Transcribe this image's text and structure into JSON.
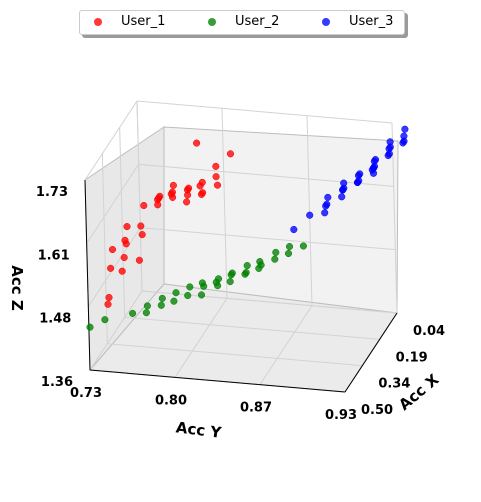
{
  "chart_data": {
    "type": "scatter",
    "projection": "3d",
    "xlabel": "Acc X",
    "ylabel": "Acc Y",
    "zlabel": "Acc Z",
    "x_ticks": [
      "0.04",
      "0.19",
      "0.34",
      "0.50"
    ],
    "y_ticks": [
      "0.73",
      "0.80",
      "0.87",
      "0.93"
    ],
    "z_ticks": [
      "1.36",
      "1.48",
      "1.61",
      "1.73"
    ],
    "xlim": [
      0.04,
      0.5
    ],
    "ylim": [
      0.73,
      0.93
    ],
    "zlim": [
      1.36,
      1.73
    ],
    "legend_position": "top-center",
    "grid": true,
    "series": [
      {
        "name": "User_1",
        "color": "#ff0000",
        "points": [
          [
            0.44,
            0.74,
            1.47
          ],
          [
            0.43,
            0.74,
            1.48
          ],
          [
            0.41,
            0.74,
            1.53
          ],
          [
            0.39,
            0.74,
            1.56
          ],
          [
            0.4,
            0.75,
            1.55
          ],
          [
            0.38,
            0.75,
            1.57
          ],
          [
            0.39,
            0.75,
            1.58
          ],
          [
            0.37,
            0.75,
            1.6
          ],
          [
            0.36,
            0.76,
            1.6
          ],
          [
            0.35,
            0.76,
            1.58
          ],
          [
            0.33,
            0.76,
            1.63
          ],
          [
            0.32,
            0.77,
            1.64
          ],
          [
            0.31,
            0.77,
            1.64
          ],
          [
            0.32,
            0.77,
            1.63
          ],
          [
            0.3,
            0.77,
            1.64
          ],
          [
            0.31,
            0.78,
            1.65
          ],
          [
            0.3,
            0.78,
            1.64
          ],
          [
            0.29,
            0.78,
            1.66
          ],
          [
            0.3,
            0.78,
            1.65
          ],
          [
            0.28,
            0.79,
            1.65
          ],
          [
            0.29,
            0.79,
            1.63
          ],
          [
            0.28,
            0.79,
            1.64
          ],
          [
            0.27,
            0.79,
            1.65
          ],
          [
            0.28,
            0.8,
            1.66
          ],
          [
            0.27,
            0.8,
            1.64
          ],
          [
            0.26,
            0.8,
            1.66
          ],
          [
            0.26,
            0.8,
            1.64
          ],
          [
            0.25,
            0.81,
            1.67
          ],
          [
            0.24,
            0.81,
            1.65
          ],
          [
            0.25,
            0.81,
            1.69
          ],
          [
            0.23,
            0.82,
            1.71
          ],
          [
            0.3,
            0.8,
            1.75
          ],
          [
            0.38,
            0.76,
            1.54
          ],
          [
            0.42,
            0.75,
            1.53
          ]
        ]
      },
      {
        "name": "User_2",
        "color": "#008000",
        "points": [
          [
            0.49,
            0.73,
            1.44
          ],
          [
            0.47,
            0.74,
            1.45
          ],
          [
            0.45,
            0.76,
            1.46
          ],
          [
            0.43,
            0.77,
            1.47
          ],
          [
            0.44,
            0.77,
            1.46
          ],
          [
            0.42,
            0.78,
            1.47
          ],
          [
            0.41,
            0.78,
            1.48
          ],
          [
            0.42,
            0.79,
            1.48
          ],
          [
            0.4,
            0.79,
            1.49
          ],
          [
            0.41,
            0.8,
            1.49
          ],
          [
            0.39,
            0.8,
            1.5
          ],
          [
            0.4,
            0.81,
            1.49
          ],
          [
            0.38,
            0.81,
            1.5
          ],
          [
            0.39,
            0.81,
            1.51
          ],
          [
            0.37,
            0.82,
            1.5
          ],
          [
            0.38,
            0.82,
            1.51
          ],
          [
            0.36,
            0.82,
            1.51
          ],
          [
            0.37,
            0.83,
            1.51
          ],
          [
            0.35,
            0.83,
            1.52
          ],
          [
            0.36,
            0.83,
            1.52
          ],
          [
            0.34,
            0.84,
            1.52
          ],
          [
            0.35,
            0.84,
            1.52
          ],
          [
            0.33,
            0.84,
            1.53
          ],
          [
            0.34,
            0.85,
            1.53
          ],
          [
            0.32,
            0.85,
            1.53
          ],
          [
            0.33,
            0.85,
            1.54
          ],
          [
            0.31,
            0.86,
            1.54
          ],
          [
            0.3,
            0.86,
            1.55
          ],
          [
            0.3,
            0.87,
            1.55
          ],
          [
            0.29,
            0.87,
            1.56
          ],
          [
            0.28,
            0.88,
            1.56
          ]
        ]
      },
      {
        "name": "User_3",
        "color": "#0000ff",
        "points": [
          [
            0.25,
            0.87,
            1.58
          ],
          [
            0.22,
            0.88,
            1.6
          ],
          [
            0.19,
            0.89,
            1.61
          ],
          [
            0.17,
            0.89,
            1.62
          ],
          [
            0.15,
            0.9,
            1.63
          ],
          [
            0.14,
            0.9,
            1.63
          ],
          [
            0.13,
            0.91,
            1.64
          ],
          [
            0.12,
            0.91,
            1.64
          ],
          [
            0.11,
            0.91,
            1.65
          ],
          [
            0.1,
            0.92,
            1.65
          ],
          [
            0.1,
            0.92,
            1.66
          ],
          [
            0.09,
            0.92,
            1.66
          ],
          [
            0.08,
            0.92,
            1.67
          ],
          [
            0.07,
            0.93,
            1.68
          ],
          [
            0.06,
            0.93,
            1.69
          ],
          [
            0.06,
            0.93,
            1.7
          ],
          [
            0.05,
            0.94,
            1.7
          ],
          [
            0.04,
            0.94,
            1.72
          ],
          [
            0.05,
            0.94,
            1.71
          ],
          [
            0.06,
            0.94,
            1.7
          ],
          [
            0.07,
            0.93,
            1.69
          ],
          [
            0.08,
            0.93,
            1.68
          ],
          [
            0.09,
            0.92,
            1.67
          ],
          [
            0.1,
            0.92,
            1.66
          ],
          [
            0.11,
            0.92,
            1.66
          ],
          [
            0.12,
            0.91,
            1.65
          ],
          [
            0.13,
            0.91,
            1.64
          ],
          [
            0.14,
            0.9,
            1.64
          ],
          [
            0.15,
            0.9,
            1.63
          ],
          [
            0.16,
            0.9,
            1.62
          ],
          [
            0.18,
            0.89,
            1.61
          ],
          [
            0.2,
            0.89,
            1.6
          ]
        ]
      }
    ]
  }
}
